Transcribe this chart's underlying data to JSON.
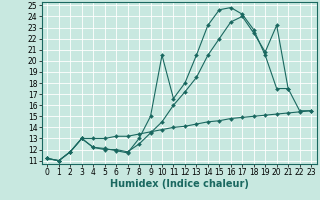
{
  "xlabel": "Humidex (Indice chaleur)",
  "background_color": "#c8e8e0",
  "grid_color": "#ffffff",
  "line_color": "#1a6860",
  "line1_x": [
    0,
    1,
    2,
    3,
    4,
    5,
    6,
    7,
    8,
    9,
    10,
    11,
    12,
    13,
    14,
    15,
    16,
    17,
    18,
    19,
    20,
    21
  ],
  "line1_y": [
    11.2,
    11.0,
    11.8,
    13.0,
    12.2,
    12.1,
    11.9,
    11.7,
    13.0,
    15.0,
    20.5,
    16.6,
    18.0,
    20.5,
    23.2,
    24.6,
    24.8,
    24.2,
    22.8,
    20.5,
    17.5,
    17.5
  ],
  "line2_x": [
    0,
    1,
    2,
    3,
    4,
    5,
    6,
    7,
    8,
    9,
    10,
    11,
    12,
    13,
    14,
    15,
    16,
    17,
    18,
    19,
    20,
    21,
    22,
    23
  ],
  "line2_y": [
    11.2,
    11.0,
    11.8,
    13.0,
    12.2,
    12.0,
    12.0,
    11.8,
    12.5,
    13.5,
    14.5,
    16.0,
    17.2,
    18.5,
    20.5,
    22.0,
    23.5,
    24.0,
    22.5,
    20.8,
    23.2,
    17.5,
    15.5,
    15.5
  ],
  "line3_x": [
    0,
    1,
    2,
    3,
    4,
    5,
    6,
    7,
    8,
    9,
    10,
    11,
    12,
    13,
    14,
    15,
    16,
    17,
    18,
    19,
    20,
    21,
    22,
    23
  ],
  "line3_y": [
    11.2,
    11.0,
    11.8,
    13.0,
    13.0,
    13.0,
    13.2,
    13.2,
    13.4,
    13.6,
    13.8,
    14.0,
    14.1,
    14.3,
    14.5,
    14.6,
    14.8,
    14.9,
    15.0,
    15.1,
    15.2,
    15.3,
    15.4,
    15.5
  ],
  "xlim": [
    -0.5,
    23.5
  ],
  "ylim": [
    10.7,
    25.3
  ],
  "xticks": [
    0,
    1,
    2,
    3,
    4,
    5,
    6,
    7,
    8,
    9,
    10,
    11,
    12,
    13,
    14,
    15,
    16,
    17,
    18,
    19,
    20,
    21,
    22,
    23
  ],
  "yticks": [
    11,
    12,
    13,
    14,
    15,
    16,
    17,
    18,
    19,
    20,
    21,
    22,
    23,
    24,
    25
  ],
  "tick_fontsize": 5.5,
  "xlabel_fontsize": 7,
  "markersize": 2.0
}
